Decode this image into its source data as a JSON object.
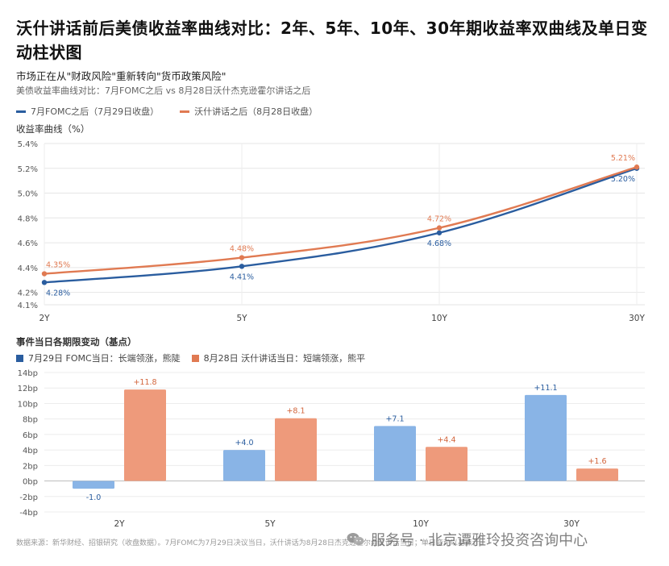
{
  "title": "沃什讲话前后美债收益率曲线对比：2年、5年、10年、30年期收益率双曲线及单日变动柱状图",
  "subtitle": "市场正在从\"财政风险\"重新转向\"货币政策风险\"",
  "subsubtitle": "美债收益率曲线对比：7月FOMC之后 vs 8月28日沃什杰克逊霍尔讲话之后",
  "footer": "数据来源：新华财经、招银研究（收盘数据）。7月FOMC为7月29日决议当日，沃什讲话为8月28日杰克逊霍尔会议讲话当日；单日变动以基点计。",
  "watermark": "服务号 · 北京谭雅玲投资咨询中心",
  "colors": {
    "series1": "#2a5d9f",
    "series2": "#e07a52",
    "bar1": "#89b4e6",
    "bar2": "#ee9a7b",
    "bar1_legend": "#2a5d9f",
    "bar2_legend": "#e07a52"
  },
  "chart_data": [
    {
      "type": "line",
      "title": "收益率曲线（%）",
      "categories": [
        "2Y",
        "5Y",
        "10Y",
        "30Y"
      ],
      "ylim": [
        4.1,
        5.4
      ],
      "yticks": [
        "5.4%",
        "5.2%",
        "5.0%",
        "4.8%",
        "4.6%",
        "4.4%",
        "4.2%",
        "4.1%"
      ],
      "ytick_values": [
        5.4,
        5.2,
        5.0,
        4.8,
        4.6,
        4.4,
        4.2,
        4.1
      ],
      "grid": true,
      "legend_position": "top-left",
      "series": [
        {
          "name": "7月FOMC之后（7月29日收盘）",
          "values": [
            4.28,
            4.41,
            4.68,
            5.2
          ],
          "labels": [
            "4.28%",
            "4.41%",
            "4.68%",
            "5.20%"
          ]
        },
        {
          "name": "沃什讲话之后（8月28日收盘）",
          "values": [
            4.35,
            4.48,
            4.72,
            5.21
          ],
          "labels": [
            "4.35%",
            "4.48%",
            "4.72%",
            "5.21%"
          ]
        }
      ]
    },
    {
      "type": "bar",
      "title": "事件当日各期限变动（基点）",
      "categories": [
        "2Y",
        "5Y",
        "10Y",
        "30Y"
      ],
      "ylim": [
        -4,
        14
      ],
      "yticks": [
        "14bp",
        "12bp",
        "10bp",
        "8bp",
        "6bp",
        "4bp",
        "2bp",
        "0bp",
        "-2bp",
        "-4bp"
      ],
      "ytick_values": [
        14,
        12,
        10,
        8,
        6,
        4,
        2,
        0,
        -2,
        -4
      ],
      "grid": true,
      "legend_position": "top-left",
      "series": [
        {
          "name": "7月29日 FOMC当日：长端领涨，熊陡",
          "values": [
            -1.0,
            4.0,
            7.1,
            11.1
          ],
          "labels": [
            "-1.0",
            "+4.0",
            "+7.1",
            "+11.1"
          ]
        },
        {
          "name": "8月28日 沃什讲话当日：短端领涨，熊平",
          "values": [
            11.8,
            8.1,
            4.4,
            1.6
          ],
          "labels": [
            "+11.8",
            "+8.1",
            "+4.4",
            "+1.6"
          ]
        }
      ]
    }
  ]
}
